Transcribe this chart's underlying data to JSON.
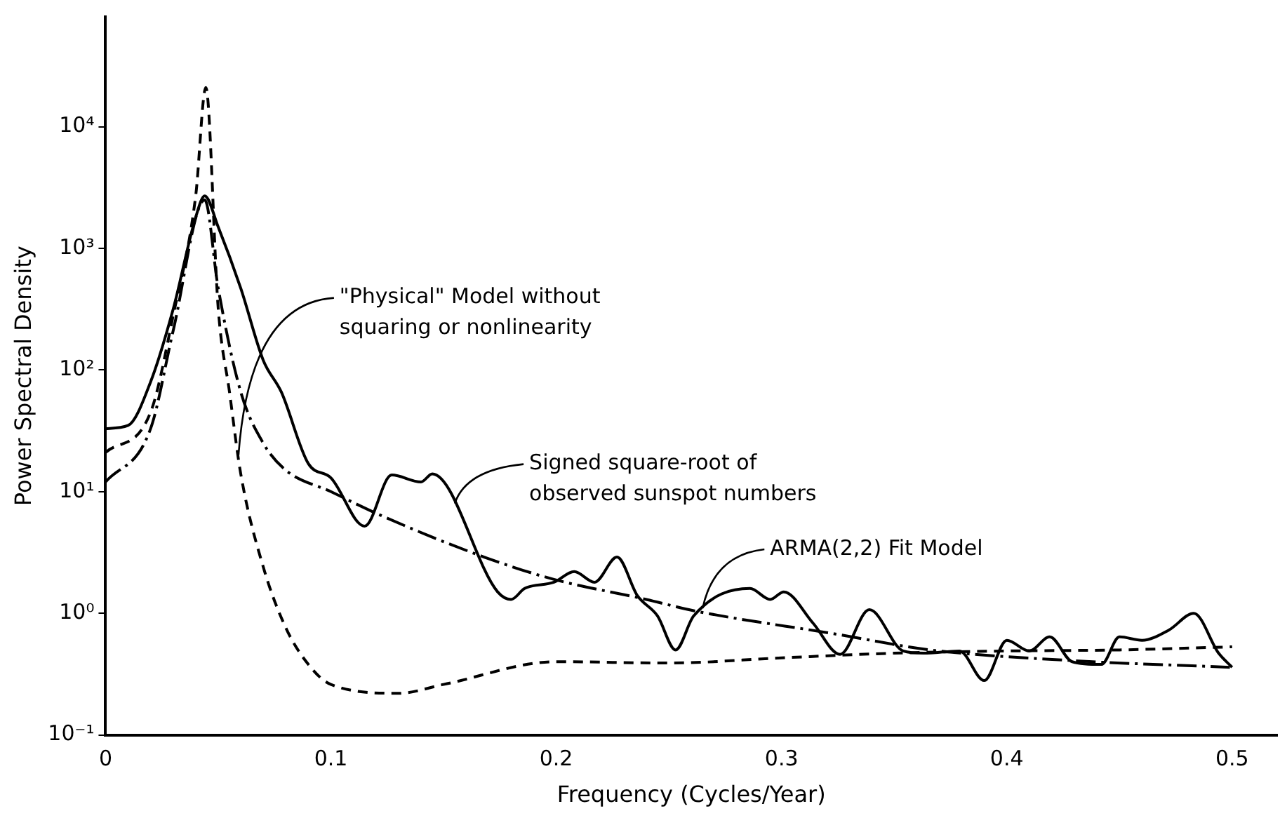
{
  "chart_data": {
    "type": "line",
    "xlabel": "Frequency (Cycles/Year)",
    "ylabel": "Power Spectral Density",
    "xlim": [
      0,
      0.52
    ],
    "xticks": [
      0,
      0.1,
      0.2,
      0.3,
      0.4,
      0.5
    ],
    "ylim": [
      0.1,
      80000
    ],
    "yticks": [
      {
        "value": 0.1,
        "label": "10⁻¹"
      },
      {
        "value": 1,
        "label": "10⁰"
      },
      {
        "value": 10,
        "label": "10¹"
      },
      {
        "value": 100,
        "label": "10²"
      },
      {
        "value": 1000,
        "label": "10³"
      },
      {
        "value": 10000,
        "label": "10⁴"
      }
    ],
    "log": "y",
    "grid": false,
    "legend": false,
    "marker": "none",
    "series": [
      {
        "color": "#000000",
        "line_style": "solid",
        "x": [
          0,
          0.01,
          0.02,
          0.03,
          0.04,
          0.044,
          0.05,
          0.06,
          0.07,
          0.078,
          0.09,
          0.1,
          0.115,
          0.127,
          0.14,
          0.145,
          0.174,
          0.18,
          0.186,
          0.199,
          0.208,
          0.217,
          0.227,
          0.236,
          0.245,
          0.253,
          0.261,
          0.286,
          0.295,
          0.301,
          0.314,
          0.326,
          0.339,
          0.354,
          0.363,
          0.379,
          0.39,
          0.4,
          0.41,
          0.419,
          0.429,
          0.442,
          0.45,
          0.46,
          0.472,
          0.483,
          0.494,
          0.5
        ],
        "values": [
          33,
          35,
          80,
          316,
          1800,
          2700,
          1500,
          470,
          120,
          66,
          17,
          13,
          5.2,
          13.7,
          12,
          14,
          1.5,
          1.3,
          1.6,
          1.8,
          2.2,
          1.8,
          2.9,
          1.4,
          0.95,
          0.5,
          0.95,
          1.6,
          1.3,
          1.5,
          0.83,
          0.46,
          1.07,
          0.49,
          0.47,
          0.49,
          0.28,
          0.6,
          0.49,
          0.64,
          0.4,
          0.38,
          0.64,
          0.6,
          0.73,
          1.0,
          0.47,
          0.36
        ]
      },
      {
        "color": "#000000",
        "line_style": "dashed",
        "x": [
          0,
          0.02,
          0.03,
          0.04,
          0.0445,
          0.05,
          0.055,
          0.06,
          0.07,
          0.08,
          0.09,
          0.1,
          0.13,
          0.15,
          0.2,
          0.25,
          0.3,
          0.35,
          0.4,
          0.45,
          0.5
        ],
        "values": [
          21,
          45,
          280,
          2700,
          21000,
          320,
          66,
          14,
          2.4,
          0.76,
          0.38,
          0.26,
          0.22,
          0.26,
          0.4,
          0.39,
          0.43,
          0.47,
          0.49,
          0.5,
          0.53
        ]
      },
      {
        "color": "#000000",
        "line_style": "dashdot",
        "x": [
          0,
          0.02,
          0.03,
          0.044,
          0.05,
          0.06,
          0.07,
          0.08,
          0.1,
          0.122,
          0.168,
          0.199,
          0.24,
          0.261,
          0.323,
          0.366,
          0.427,
          0.499
        ],
        "values": [
          12,
          33,
          210,
          2500,
          470,
          66,
          25,
          15,
          10,
          6.4,
          2.9,
          1.9,
          1.3,
          1.05,
          0.68,
          0.5,
          0.41,
          0.36
        ]
      }
    ],
    "annotations": [
      {
        "text": "\"Physical\" Model without\nsquaring or nonlinearity",
        "x": 0.059,
        "y": 20
      },
      {
        "text": "Signed square-root of\nobserved sunspot numbers",
        "x": 0.155,
        "y": 8
      },
      {
        "text": "ARMA(2,2) Fit Model",
        "x": 0.265,
        "y": 1.1
      }
    ]
  }
}
